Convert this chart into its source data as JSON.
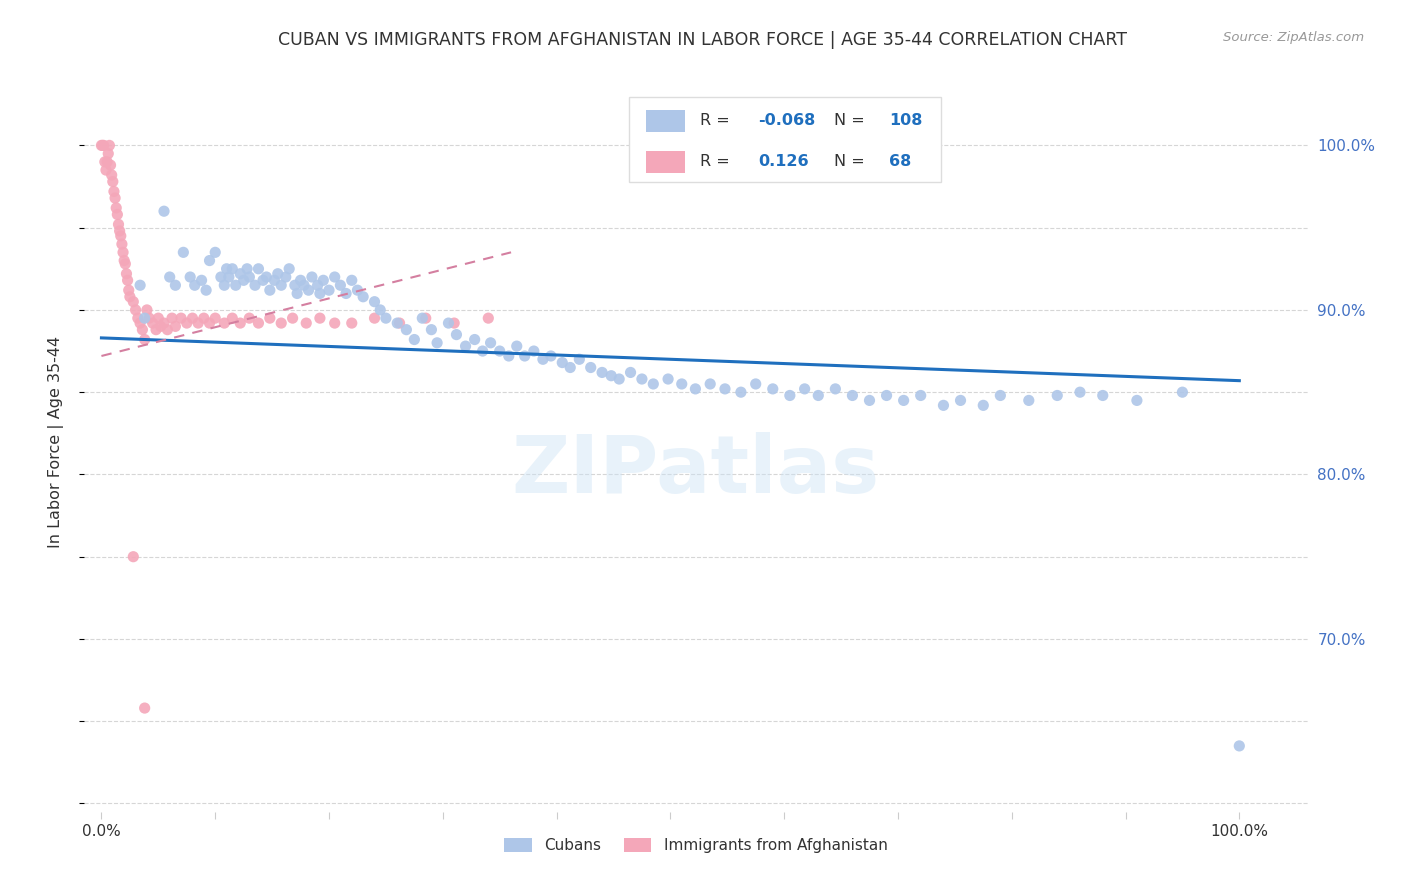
{
  "title": "CUBAN VS IMMIGRANTS FROM AFGHANISTAN IN LABOR FORCE | AGE 35-44 CORRELATION CHART",
  "source_text": "Source: ZipAtlas.com",
  "ylabel": "In Labor Force | Age 35-44",
  "watermark": "ZIPatlas",
  "legend_entries": [
    {
      "label": "Cubans",
      "color": "#aec6e8",
      "R": "-0.068",
      "N": "108"
    },
    {
      "label": "Immigrants from Afghanistan",
      "color": "#f4a7b9",
      "R": "0.126",
      "N": "68"
    }
  ],
  "xlim": [
    -0.015,
    1.06
  ],
  "ylim": [
    0.595,
    1.045
  ],
  "blue_scatter_x": [
    0.034,
    0.038,
    0.055,
    0.06,
    0.065,
    0.072,
    0.078,
    0.082,
    0.088,
    0.092,
    0.095,
    0.1,
    0.105,
    0.108,
    0.11,
    0.112,
    0.115,
    0.118,
    0.122,
    0.125,
    0.128,
    0.13,
    0.135,
    0.138,
    0.142,
    0.145,
    0.148,
    0.152,
    0.155,
    0.158,
    0.162,
    0.165,
    0.17,
    0.172,
    0.175,
    0.178,
    0.182,
    0.185,
    0.19,
    0.192,
    0.195,
    0.2,
    0.205,
    0.21,
    0.215,
    0.22,
    0.225,
    0.23,
    0.24,
    0.245,
    0.25,
    0.26,
    0.268,
    0.275,
    0.282,
    0.29,
    0.295,
    0.305,
    0.312,
    0.32,
    0.328,
    0.335,
    0.342,
    0.35,
    0.358,
    0.365,
    0.372,
    0.38,
    0.388,
    0.395,
    0.405,
    0.412,
    0.42,
    0.43,
    0.44,
    0.448,
    0.455,
    0.465,
    0.475,
    0.485,
    0.498,
    0.51,
    0.522,
    0.535,
    0.548,
    0.562,
    0.575,
    0.59,
    0.605,
    0.618,
    0.63,
    0.645,
    0.66,
    0.675,
    0.69,
    0.705,
    0.72,
    0.74,
    0.755,
    0.775,
    0.79,
    0.815,
    0.84,
    0.86,
    0.88,
    0.91,
    0.95,
    1.0
  ],
  "blue_scatter_y": [
    0.915,
    0.895,
    0.96,
    0.92,
    0.915,
    0.935,
    0.92,
    0.915,
    0.918,
    0.912,
    0.93,
    0.935,
    0.92,
    0.915,
    0.925,
    0.92,
    0.925,
    0.915,
    0.922,
    0.918,
    0.925,
    0.92,
    0.915,
    0.925,
    0.918,
    0.92,
    0.912,
    0.918,
    0.922,
    0.915,
    0.92,
    0.925,
    0.915,
    0.91,
    0.918,
    0.915,
    0.912,
    0.92,
    0.915,
    0.91,
    0.918,
    0.912,
    0.92,
    0.915,
    0.91,
    0.918,
    0.912,
    0.908,
    0.905,
    0.9,
    0.895,
    0.892,
    0.888,
    0.882,
    0.895,
    0.888,
    0.88,
    0.892,
    0.885,
    0.878,
    0.882,
    0.875,
    0.88,
    0.875,
    0.872,
    0.878,
    0.872,
    0.875,
    0.87,
    0.872,
    0.868,
    0.865,
    0.87,
    0.865,
    0.862,
    0.86,
    0.858,
    0.862,
    0.858,
    0.855,
    0.858,
    0.855,
    0.852,
    0.855,
    0.852,
    0.85,
    0.855,
    0.852,
    0.848,
    0.852,
    0.848,
    0.852,
    0.848,
    0.845,
    0.848,
    0.845,
    0.848,
    0.842,
    0.845,
    0.842,
    0.848,
    0.845,
    0.848,
    0.85,
    0.848,
    0.845,
    0.85,
    0.635
  ],
  "pink_scatter_x": [
    0.0,
    0.001,
    0.002,
    0.003,
    0.004,
    0.005,
    0.006,
    0.007,
    0.008,
    0.009,
    0.01,
    0.011,
    0.012,
    0.013,
    0.014,
    0.015,
    0.016,
    0.017,
    0.018,
    0.019,
    0.02,
    0.021,
    0.022,
    0.023,
    0.024,
    0.025,
    0.028,
    0.03,
    0.032,
    0.034,
    0.036,
    0.038,
    0.04,
    0.042,
    0.045,
    0.048,
    0.05,
    0.052,
    0.055,
    0.058,
    0.062,
    0.065,
    0.07,
    0.075,
    0.08,
    0.085,
    0.09,
    0.095,
    0.1,
    0.108,
    0.115,
    0.122,
    0.13,
    0.138,
    0.148,
    0.158,
    0.168,
    0.18,
    0.192,
    0.205,
    0.22,
    0.24,
    0.262,
    0.285,
    0.31,
    0.34,
    0.028,
    0.038
  ],
  "pink_scatter_y": [
    1.0,
    1.0,
    1.0,
    0.99,
    0.985,
    0.99,
    0.995,
    1.0,
    0.988,
    0.982,
    0.978,
    0.972,
    0.968,
    0.962,
    0.958,
    0.952,
    0.948,
    0.945,
    0.94,
    0.935,
    0.93,
    0.928,
    0.922,
    0.918,
    0.912,
    0.908,
    0.905,
    0.9,
    0.895,
    0.892,
    0.888,
    0.882,
    0.9,
    0.895,
    0.892,
    0.888,
    0.895,
    0.89,
    0.892,
    0.888,
    0.895,
    0.89,
    0.895,
    0.892,
    0.895,
    0.892,
    0.895,
    0.892,
    0.895,
    0.892,
    0.895,
    0.892,
    0.895,
    0.892,
    0.895,
    0.892,
    0.895,
    0.892,
    0.895,
    0.892,
    0.892,
    0.895,
    0.892,
    0.895,
    0.892,
    0.895,
    0.75,
    0.658
  ],
  "blue_line_x": [
    0.0,
    1.0
  ],
  "blue_line_y": [
    0.883,
    0.857
  ],
  "pink_line_x": [
    0.0,
    0.36
  ],
  "pink_line_y": [
    0.872,
    0.935
  ],
  "grid_color": "#cccccc",
  "title_color": "#333333",
  "right_axis_color": "#4472c4",
  "blue_color": "#aec6e8",
  "pink_color": "#f4a7b9",
  "blue_line_color": "#1f6fbe",
  "pink_line_color": "#d47fa0",
  "blue_text_color": "#1f6fbe",
  "background_color": "#ffffff",
  "yticks": [
    0.6,
    0.65,
    0.7,
    0.75,
    0.8,
    0.85,
    0.9,
    0.95,
    1.0
  ],
  "y_right_labels": [
    "",
    "",
    "70.0%",
    "",
    "80.0%",
    "",
    "90.0%",
    "",
    "100.0%"
  ]
}
